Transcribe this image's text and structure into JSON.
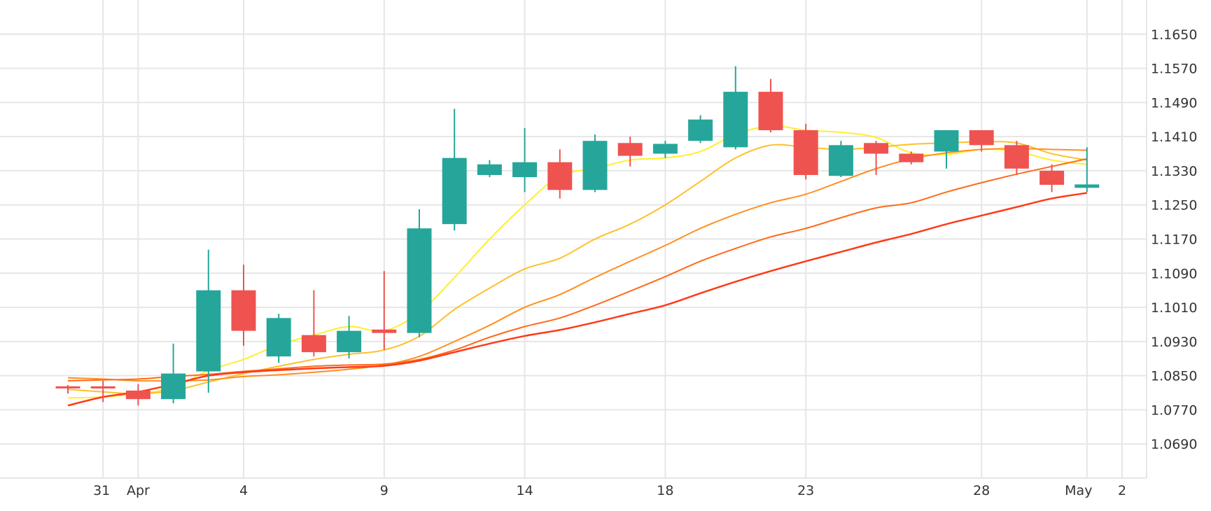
{
  "chart_data": {
    "type": "candlestick",
    "title": "",
    "xlabel": "",
    "ylabel": "",
    "ylim": [
      1.061,
      1.173
    ],
    "y_ticks": [
      "1.0690",
      "1.0770",
      "1.0850",
      "1.0930",
      "1.1010",
      "1.1090",
      "1.1170",
      "1.1250",
      "1.1330",
      "1.1410",
      "1.1490",
      "1.1570",
      "1.1650"
    ],
    "x_ticks": [
      {
        "label": "31",
        "index": 1
      },
      {
        "label": "Apr",
        "index": 2
      },
      {
        "label": "4",
        "index": 5
      },
      {
        "label": "9",
        "index": 9
      },
      {
        "label": "14",
        "index": 13
      },
      {
        "label": "18",
        "index": 17
      },
      {
        "label": "23",
        "index": 21
      },
      {
        "label": "28",
        "index": 26
      },
      {
        "label": "May",
        "index": 29
      },
      {
        "label": "2",
        "index": 30
      }
    ],
    "grid": true,
    "colors": {
      "up": "#26a69a",
      "down": "#ef5350",
      "grid": "#e6e6e6"
    },
    "candles": [
      {
        "open": 1.0825,
        "high": 1.0828,
        "low": 1.0808,
        "close": 1.0822
      },
      {
        "open": 1.0825,
        "high": 1.0838,
        "low": 1.0788,
        "close": 1.082
      },
      {
        "open": 1.0815,
        "high": 1.083,
        "low": 1.078,
        "close": 1.0795
      },
      {
        "open": 1.0795,
        "high": 1.0925,
        "low": 1.0785,
        "close": 1.0855
      },
      {
        "open": 1.086,
        "high": 1.1145,
        "low": 1.081,
        "close": 1.105
      },
      {
        "open": 1.105,
        "high": 1.111,
        "low": 1.092,
        "close": 1.0955
      },
      {
        "open": 1.0895,
        "high": 1.0995,
        "low": 1.088,
        "close": 1.0985
      },
      {
        "open": 1.0945,
        "high": 1.105,
        "low": 1.0895,
        "close": 1.0905
      },
      {
        "open": 1.0905,
        "high": 1.099,
        "low": 1.089,
        "close": 1.0955
      },
      {
        "open": 1.0958,
        "high": 1.1095,
        "low": 1.091,
        "close": 1.095
      },
      {
        "open": 1.095,
        "high": 1.124,
        "low": 1.094,
        "close": 1.1195
      },
      {
        "open": 1.1205,
        "high": 1.1475,
        "low": 1.119,
        "close": 1.136
      },
      {
        "open": 1.132,
        "high": 1.1355,
        "low": 1.1315,
        "close": 1.1345
      },
      {
        "open": 1.1315,
        "high": 1.143,
        "low": 1.128,
        "close": 1.135
      },
      {
        "open": 1.135,
        "high": 1.138,
        "low": 1.1265,
        "close": 1.1285
      },
      {
        "open": 1.1285,
        "high": 1.1415,
        "low": 1.128,
        "close": 1.14
      },
      {
        "open": 1.1395,
        "high": 1.141,
        "low": 1.134,
        "close": 1.1365
      },
      {
        "open": 1.137,
        "high": 1.14,
        "low": 1.136,
        "close": 1.1393
      },
      {
        "open": 1.14,
        "high": 1.146,
        "low": 1.1395,
        "close": 1.145
      },
      {
        "open": 1.1385,
        "high": 1.1575,
        "low": 1.138,
        "close": 1.1515
      },
      {
        "open": 1.1515,
        "high": 1.1545,
        "low": 1.142,
        "close": 1.1425
      },
      {
        "open": 1.1425,
        "high": 1.144,
        "low": 1.131,
        "close": 1.132
      },
      {
        "open": 1.1318,
        "high": 1.14,
        "low": 1.1315,
        "close": 1.139
      },
      {
        "open": 1.1395,
        "high": 1.14,
        "low": 1.132,
        "close": 1.137
      },
      {
        "open": 1.137,
        "high": 1.1375,
        "low": 1.1345,
        "close": 1.135
      },
      {
        "open": 1.1375,
        "high": 1.1425,
        "low": 1.1335,
        "close": 1.1425
      },
      {
        "open": 1.1425,
        "high": 1.1425,
        "low": 1.1375,
        "close": 1.139
      },
      {
        "open": 1.139,
        "high": 1.14,
        "low": 1.132,
        "close": 1.1335
      },
      {
        "open": 1.133,
        "high": 1.1345,
        "low": 1.128,
        "close": 1.1297
      },
      {
        "open": 1.129,
        "high": 1.1385,
        "low": 1.128,
        "close": 1.1298
      }
    ],
    "moving_averages": [
      {
        "color": "#ffef2b",
        "values": [
          1.0798,
          1.08,
          1.0808,
          1.0822,
          1.0862,
          1.0888,
          1.0922,
          1.0945,
          1.0965,
          1.0955,
          1.0998,
          1.108,
          1.117,
          1.125,
          1.1318,
          1.1335,
          1.1355,
          1.136,
          1.1375,
          1.1415,
          1.1435,
          1.1425,
          1.142,
          1.1408,
          1.1372,
          1.1368,
          1.138,
          1.1375,
          1.1355,
          1.1345
        ]
      },
      {
        "color": "#fec02a",
        "values": [
          1.0818,
          1.0812,
          1.0808,
          1.0815,
          1.0835,
          1.0855,
          1.0872,
          1.0888,
          1.09,
          1.091,
          1.0942,
          1.1005,
          1.1055,
          1.11,
          1.1125,
          1.117,
          1.1205,
          1.125,
          1.1305,
          1.136,
          1.139,
          1.1385,
          1.138,
          1.1385,
          1.1392,
          1.1395,
          1.1398,
          1.1395,
          1.137,
          1.1355
        ]
      },
      {
        "color": "#ff8f1e",
        "values": [
          1.0845,
          1.0842,
          1.0838,
          1.0838,
          1.084,
          1.0848,
          1.0852,
          1.0858,
          1.0865,
          1.0875,
          1.0895,
          1.093,
          1.0968,
          1.101,
          1.104,
          1.108,
          1.1118,
          1.1155,
          1.1195,
          1.1228,
          1.1255,
          1.1275,
          1.1305,
          1.1335,
          1.1358,
          1.1372,
          1.138,
          1.1382,
          1.138,
          1.1378
        ]
      },
      {
        "color": "#ff6a1a",
        "values": [
          1.0838,
          1.084,
          1.0842,
          1.0848,
          1.0853,
          1.086,
          1.0866,
          1.0872,
          1.0875,
          1.0877,
          1.0888,
          1.091,
          1.094,
          1.0965,
          1.0985,
          1.1015,
          1.1048,
          1.1082,
          1.1118,
          1.1148,
          1.1175,
          1.1195,
          1.122,
          1.1243,
          1.1255,
          1.128,
          1.1302,
          1.1322,
          1.134,
          1.1358
        ]
      },
      {
        "color": "#ff3a17",
        "values": [
          1.078,
          1.08,
          1.0812,
          1.083,
          1.085,
          1.0858,
          1.0863,
          1.0867,
          1.087,
          1.0873,
          1.0885,
          1.0905,
          1.0925,
          1.0943,
          1.0957,
          1.0975,
          1.0995,
          1.1015,
          1.1043,
          1.107,
          1.1095,
          1.1118,
          1.114,
          1.1162,
          1.1182,
          1.1205,
          1.1225,
          1.1245,
          1.1265,
          1.1278
        ]
      }
    ]
  }
}
